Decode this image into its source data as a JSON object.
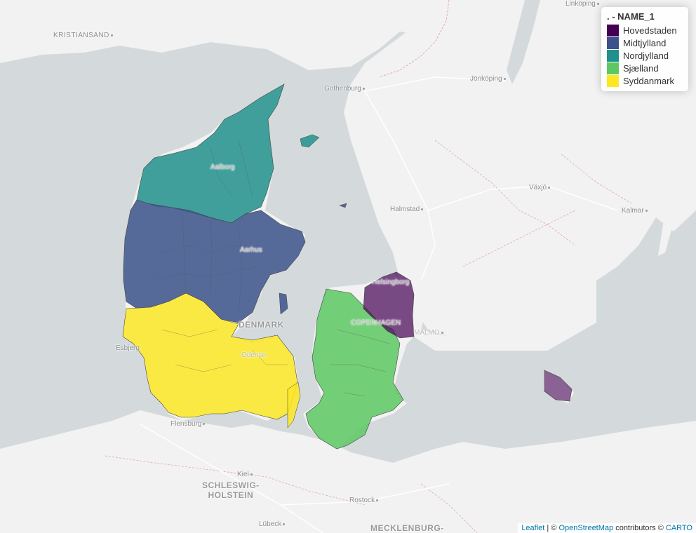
{
  "legend": {
    "title": ". - NAME_1",
    "items": [
      {
        "label": "Hovedstaden",
        "color": "#440154"
      },
      {
        "label": "Midtjylland",
        "color": "#3b528b"
      },
      {
        "label": "Nordjylland",
        "color": "#21908c"
      },
      {
        "label": "Sjælland",
        "color": "#5dc863"
      },
      {
        "label": "Syddanmark",
        "color": "#fde725"
      }
    ]
  },
  "cities": {
    "kristiansand": "KRISTIANSAND",
    "linkoping": "Linköping",
    "gothenburg": "Gothenburg",
    "jonkoping": "Jönköping",
    "aalborg": "Aalborg",
    "vaxjo": "Växjö",
    "halmstad": "Halmstad",
    "kalmar": "Kalmar",
    "aarhus": "Aarhus",
    "helsingborg": "Helsingborg",
    "denmark": "DENMARK",
    "copenhagen": "COPENHAGEN",
    "malmo": "MALMO",
    "esbjerg": "Esbjerg",
    "odense": "Odense",
    "flensburg": "Flensburg",
    "kiel": "Kiel",
    "schleswig_1": "SCHLESWIG-",
    "schleswig_2": "HOLSTEIN",
    "rostock": "Rostock",
    "lubeck": "Lübeck",
    "mecklenburg": "MECKLENBURG-"
  },
  "attribution": {
    "leaflet": "Leaflet",
    "sep1": " | © ",
    "osm": "OpenStreetMap",
    "contrib": " contributors © ",
    "carto": "CARTO"
  },
  "colors": {
    "water": "#d4dadc",
    "land": "#f2f2f2",
    "border": "#e4a9a9"
  }
}
